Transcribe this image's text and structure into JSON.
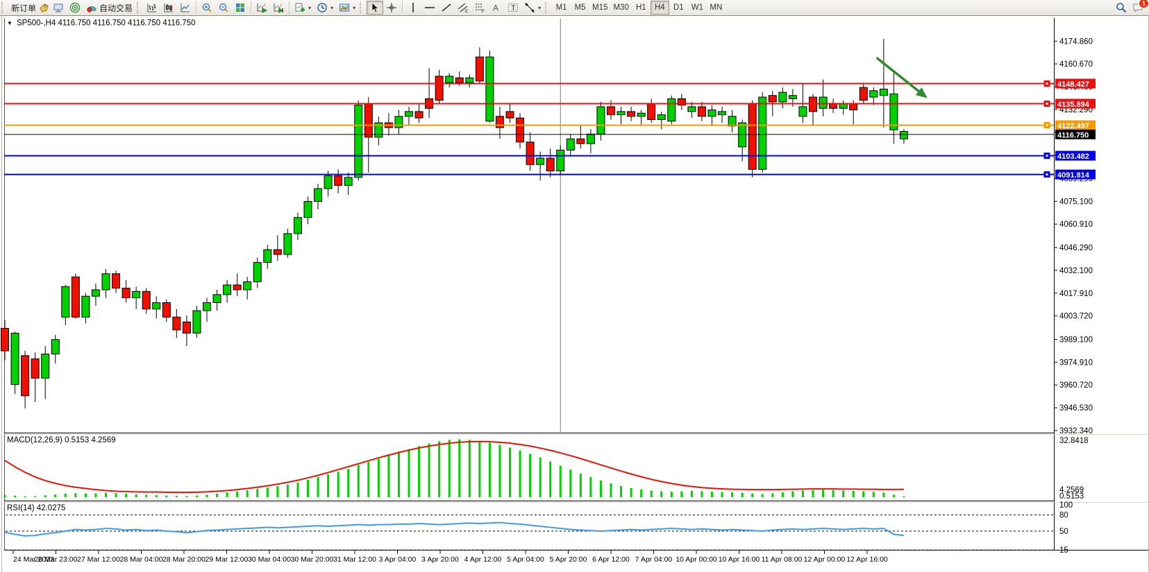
{
  "toolbar": {
    "new_order": "新订单",
    "autotrade": "自动交易",
    "timeframes": [
      "M1",
      "M5",
      "M15",
      "M30",
      "H1",
      "H4",
      "D1",
      "W1",
      "MN"
    ],
    "active_timeframe": "H4",
    "badge": "1"
  },
  "chart": {
    "collapse_arrow": "▼",
    "symbol_period": "SP500-,H4",
    "ohlc_display": "4116.750 4116.750 4116.750 4116.750"
  },
  "chart_data": {
    "type": "candlestick",
    "symbol": "SP500-",
    "timeframe": "H4",
    "title": "SP500-,H4 4116.750 4116.750 4116.750 4116.750",
    "current_price": "4116.750",
    "y_axis_ticks": [
      "4174.860",
      "4160.670",
      "4146.480",
      "4132.290",
      "4118.100",
      "4103.910",
      "4089.290",
      "4075.100",
      "4060.910",
      "4046.290",
      "4032.100",
      "4017.910",
      "4003.720",
      "3989.100",
      "3974.910",
      "3960.720",
      "3946.530",
      "3932.340"
    ],
    "x_labels": [
      "24 Mar 2023",
      "26 Mar 23:00",
      "27 Mar 12:00",
      "28 Mar 04:00",
      "28 Mar 20:00",
      "29 Mar 12:00",
      "30 Mar 04:00",
      "30 Mar 20:00",
      "31 Mar 12:00",
      "3 Apr 04:00",
      "3 Apr 20:00",
      "4 Apr 12:00",
      "5 Apr 04:00",
      "5 Apr 20:00",
      "6 Apr 12:00",
      "7 Apr 04:00",
      "10 Apr 00:00",
      "10 Apr 16:00",
      "11 Apr 08:00",
      "12 Apr 00:00",
      "12 Apr 16:00"
    ],
    "hlines": [
      {
        "price": 4148.427,
        "label": "4148.427",
        "color": "#e81010",
        "width": 2
      },
      {
        "price": 4135.894,
        "label": "4135.894",
        "color": "#e81010",
        "width": 2
      },
      {
        "price": 4122.497,
        "label": "4122.497",
        "color": "#f59a00",
        "width": 2
      },
      {
        "price": 4116.75,
        "label": "4116.750",
        "color": "#000000",
        "width": 1
      },
      {
        "price": 4103.482,
        "label": "4103.482",
        "color": "#0000e8",
        "width": 2
      },
      {
        "price": 4091.814,
        "label": "4091.814",
        "color": "#0000e8",
        "width": 2
      }
    ],
    "vertical_separator_index": 55,
    "candles": [
      [
        3996,
        4001,
        3976,
        3982
      ],
      [
        3961,
        3994,
        3955,
        3993
      ],
      [
        3979,
        3982,
        3946,
        3954
      ],
      [
        3977,
        3981,
        3950,
        3965
      ],
      [
        3965,
        3985,
        3952,
        3980
      ],
      [
        3980,
        3992,
        3974,
        3989
      ],
      [
        4003,
        4023,
        3998,
        4022
      ],
      [
        4028,
        4030,
        4002,
        4003
      ],
      [
        4003,
        4018,
        3999,
        4016
      ],
      [
        4016,
        4024,
        4010,
        4020
      ],
      [
        4020,
        4033,
        4015,
        4030
      ],
      [
        4030,
        4032,
        4018,
        4021
      ],
      [
        4021,
        4026,
        4012,
        4015
      ],
      [
        4015,
        4022,
        4008,
        4019
      ],
      [
        4019,
        4021,
        4005,
        4008
      ],
      [
        4008,
        4016,
        4002,
        4012
      ],
      [
        4012,
        4014,
        4000,
        4003
      ],
      [
        4003,
        4008,
        3990,
        3995
      ],
      [
        4000,
        4004,
        3985,
        3993
      ],
      [
        3993,
        4010,
        3990,
        4007
      ],
      [
        4007,
        4015,
        4000,
        4012
      ],
      [
        4012,
        4020,
        4007,
        4017
      ],
      [
        4017,
        4026,
        4012,
        4023
      ],
      [
        4023,
        4030,
        4016,
        4020
      ],
      [
        4020,
        4028,
        4014,
        4025
      ],
      [
        4025,
        4040,
        4021,
        4037
      ],
      [
        4037,
        4048,
        4033,
        4045
      ],
      [
        4045,
        4054,
        4038,
        4042
      ],
      [
        4042,
        4058,
        4040,
        4055
      ],
      [
        4055,
        4068,
        4051,
        4065
      ],
      [
        4065,
        4078,
        4061,
        4075
      ],
      [
        4075,
        4086,
        4070,
        4083
      ],
      [
        4083,
        4094,
        4078,
        4091
      ],
      [
        4091,
        4095,
        4080,
        4085
      ],
      [
        4085,
        4093,
        4079,
        4090
      ],
      [
        4090,
        4138,
        4088,
        4135
      ],
      [
        4136,
        4140,
        4093,
        4115
      ],
      [
        4115,
        4128,
        4110,
        4124
      ],
      [
        4124,
        4130,
        4116,
        4121
      ],
      [
        4121,
        4132,
        4117,
        4128
      ],
      [
        4128,
        4134,
        4122,
        4131
      ],
      [
        4131,
        4136,
        4124,
        4127
      ],
      [
        4139,
        4158,
        4127,
        4133
      ],
      [
        4153,
        4157,
        4136,
        4138
      ],
      [
        4149,
        4155,
        4146,
        4153
      ],
      [
        4152,
        4156,
        4147,
        4149
      ],
      [
        4149,
        4154,
        4146,
        4152
      ],
      [
        4165,
        4171,
        4148,
        4150
      ],
      [
        4125,
        4169,
        4124,
        4165
      ],
      [
        4128,
        4134,
        4114,
        4121
      ],
      [
        4131,
        4136,
        4124,
        4127
      ],
      [
        4127,
        4130,
        4108,
        4112
      ],
      [
        4112,
        4118,
        4094,
        4098
      ],
      [
        4098,
        4106,
        4088,
        4102
      ],
      [
        4102,
        4108,
        4090,
        4094
      ],
      [
        4094,
        4110,
        4092,
        4107
      ],
      [
        4107,
        4117,
        4103,
        4114
      ],
      [
        4114,
        4122,
        4108,
        4111
      ],
      [
        4111,
        4120,
        4105,
        4117
      ],
      [
        4117,
        4137,
        4113,
        4134
      ],
      [
        4134,
        4138,
        4126,
        4129
      ],
      [
        4129,
        4134,
        4123,
        4131
      ],
      [
        4131,
        4134,
        4125,
        4128
      ],
      [
        4128,
        4132,
        4122,
        4130
      ],
      [
        4136,
        4139,
        4124,
        4126
      ],
      [
        4126,
        4131,
        4120,
        4129
      ],
      [
        4125,
        4141,
        4123,
        4139
      ],
      [
        4139,
        4142,
        4132,
        4135
      ],
      [
        4131,
        4137,
        4127,
        4134
      ],
      [
        4134,
        4137,
        4125,
        4128
      ],
      [
        4128,
        4135,
        4122,
        4132
      ],
      [
        4129,
        4134,
        4124,
        4131
      ],
      [
        4122,
        4132,
        4118,
        4128
      ],
      [
        4109,
        4126,
        4100,
        4124
      ],
      [
        4136,
        4138,
        4090,
        4095
      ],
      [
        4095,
        4143,
        4093,
        4140
      ],
      [
        4141,
        4144,
        4128,
        4137
      ],
      [
        4137,
        4146,
        4133,
        4143
      ],
      [
        4139,
        4145,
        4134,
        4141
      ],
      [
        4128,
        4148,
        4124,
        4134
      ],
      [
        4140,
        4142,
        4122,
        4131
      ],
      [
        4133,
        4151,
        4128,
        4140
      ],
      [
        4136,
        4139,
        4130,
        4133
      ],
      [
        4133,
        4138,
        4129,
        4136
      ],
      [
        4136,
        4138,
        4123,
        4132
      ],
      [
        4146,
        4149,
        4136,
        4138
      ],
      [
        4140,
        4146,
        4135,
        4144
      ],
      [
        4141,
        4176.3,
        4121,
        4145
      ],
      [
        4119.6,
        4155,
        4111,
        4142
      ],
      [
        4114,
        4120,
        4111,
        4118.6
      ]
    ],
    "candle_up_color": "#00d200",
    "candle_down_color": "#ee1000",
    "indicators": {
      "macd": {
        "label": "MACD(12,26,9) 0.5153 4.2569",
        "params": "12,26,9",
        "current_main": "0.5153",
        "current_signal": "4.2569",
        "axis_max_label": "32.8418",
        "histogram_color": "#00d200",
        "signal_color": "#ee1000",
        "histogram": [
          1.2,
          0.8,
          0.5,
          0.6,
          1.0,
          1.4,
          1.9,
          2.2,
          1.9,
          2.1,
          2.4,
          2.2,
          1.9,
          1.6,
          1.3,
          1.1,
          0.9,
          0.7,
          0.6,
          0.9,
          1.3,
          1.9,
          2.6,
          3.1,
          3.7,
          4.5,
          5.3,
          6.0,
          6.8,
          8.0,
          9.4,
          11.0,
          12.4,
          13.8,
          15.4,
          17.6,
          19.2,
          20.8,
          22.8,
          24.8,
          26.2,
          27.8,
          29.2,
          30.4,
          31.2,
          31.5,
          31.2,
          30.6,
          29.7,
          28.5,
          27.0,
          25.4,
          23.6,
          21.6,
          19.4,
          17.2,
          15.0,
          12.9,
          10.9,
          9.1,
          7.5,
          6.1,
          5.0,
          4.2,
          3.6,
          3.2,
          3.0,
          3.2,
          3.4,
          3.2,
          3.0,
          2.8,
          2.6,
          2.4,
          2.0,
          1.7,
          2.1,
          2.6,
          3.2,
          3.6,
          3.8,
          4.0,
          3.8,
          3.6,
          3.4,
          3.2,
          2.9,
          2.5,
          1.3,
          0.5
        ],
        "signal": [
          20,
          16.5,
          13.5,
          11,
          9,
          7.5,
          6.3,
          5.4,
          4.7,
          4.1,
          3.6,
          3.2,
          3.0,
          2.9,
          2.8,
          2.8,
          2.7,
          2.6,
          2.6,
          2.7,
          2.9,
          3.2,
          3.6,
          4.1,
          4.7,
          5.4,
          6.2,
          7.1,
          8.1,
          9.2,
          10.5,
          11.9,
          13.4,
          15.0,
          16.6,
          18.2,
          19.8,
          21.4,
          22.9,
          24.3,
          25.6,
          26.8,
          27.8,
          28.7,
          29.4,
          29.9,
          30.2,
          30.3,
          30.2,
          29.9,
          29.4,
          28.7,
          27.8,
          26.7,
          25.5,
          24.1,
          22.6,
          21.0,
          19.3,
          17.6,
          15.9,
          14.2,
          12.6,
          11.1,
          9.7,
          8.5,
          7.4,
          6.5,
          5.8,
          5.2,
          4.8,
          4.5,
          4.3,
          4.2,
          4.1,
          4.1,
          4.1,
          4.2,
          4.3,
          4.4,
          4.5,
          4.5,
          4.5,
          4.4,
          4.4,
          4.3,
          4.3,
          4.2,
          4.2,
          4.26
        ]
      },
      "rsi": {
        "label": "RSI(14) 42.0275",
        "params": "14",
        "current": "42.0275",
        "axis_labels": [
          "100",
          "80",
          "50",
          "15"
        ],
        "levels": [
          80,
          50,
          15
        ],
        "line_color": "#3e9be9",
        "values": [
          48,
          44,
          41,
          42,
          45,
          47,
          50,
          53,
          52,
          53,
          55,
          54,
          52,
          53,
          51,
          52,
          50,
          49,
          47,
          49,
          51,
          52,
          53,
          54,
          55,
          56,
          57,
          56,
          57,
          58,
          59,
          60,
          59,
          60,
          61,
          62,
          61,
          62,
          62,
          63,
          63,
          64,
          63,
          62,
          63,
          64,
          65,
          64,
          65,
          66,
          64,
          63,
          61,
          59,
          57,
          55,
          53,
          52,
          51,
          50,
          51,
          52,
          53,
          52,
          53,
          54,
          55,
          54,
          53,
          54,
          53,
          52,
          53,
          52,
          51,
          50,
          52,
          53,
          54,
          53,
          54,
          55,
          54,
          53,
          54,
          55,
          54,
          55,
          44,
          42
        ]
      }
    },
    "annotation_arrow": {
      "color": "#2e8b2e",
      "from": {
        "index": 86.3,
        "price": 4164.5
      },
      "to": {
        "index": 91.0,
        "price": 4141.0
      }
    }
  }
}
